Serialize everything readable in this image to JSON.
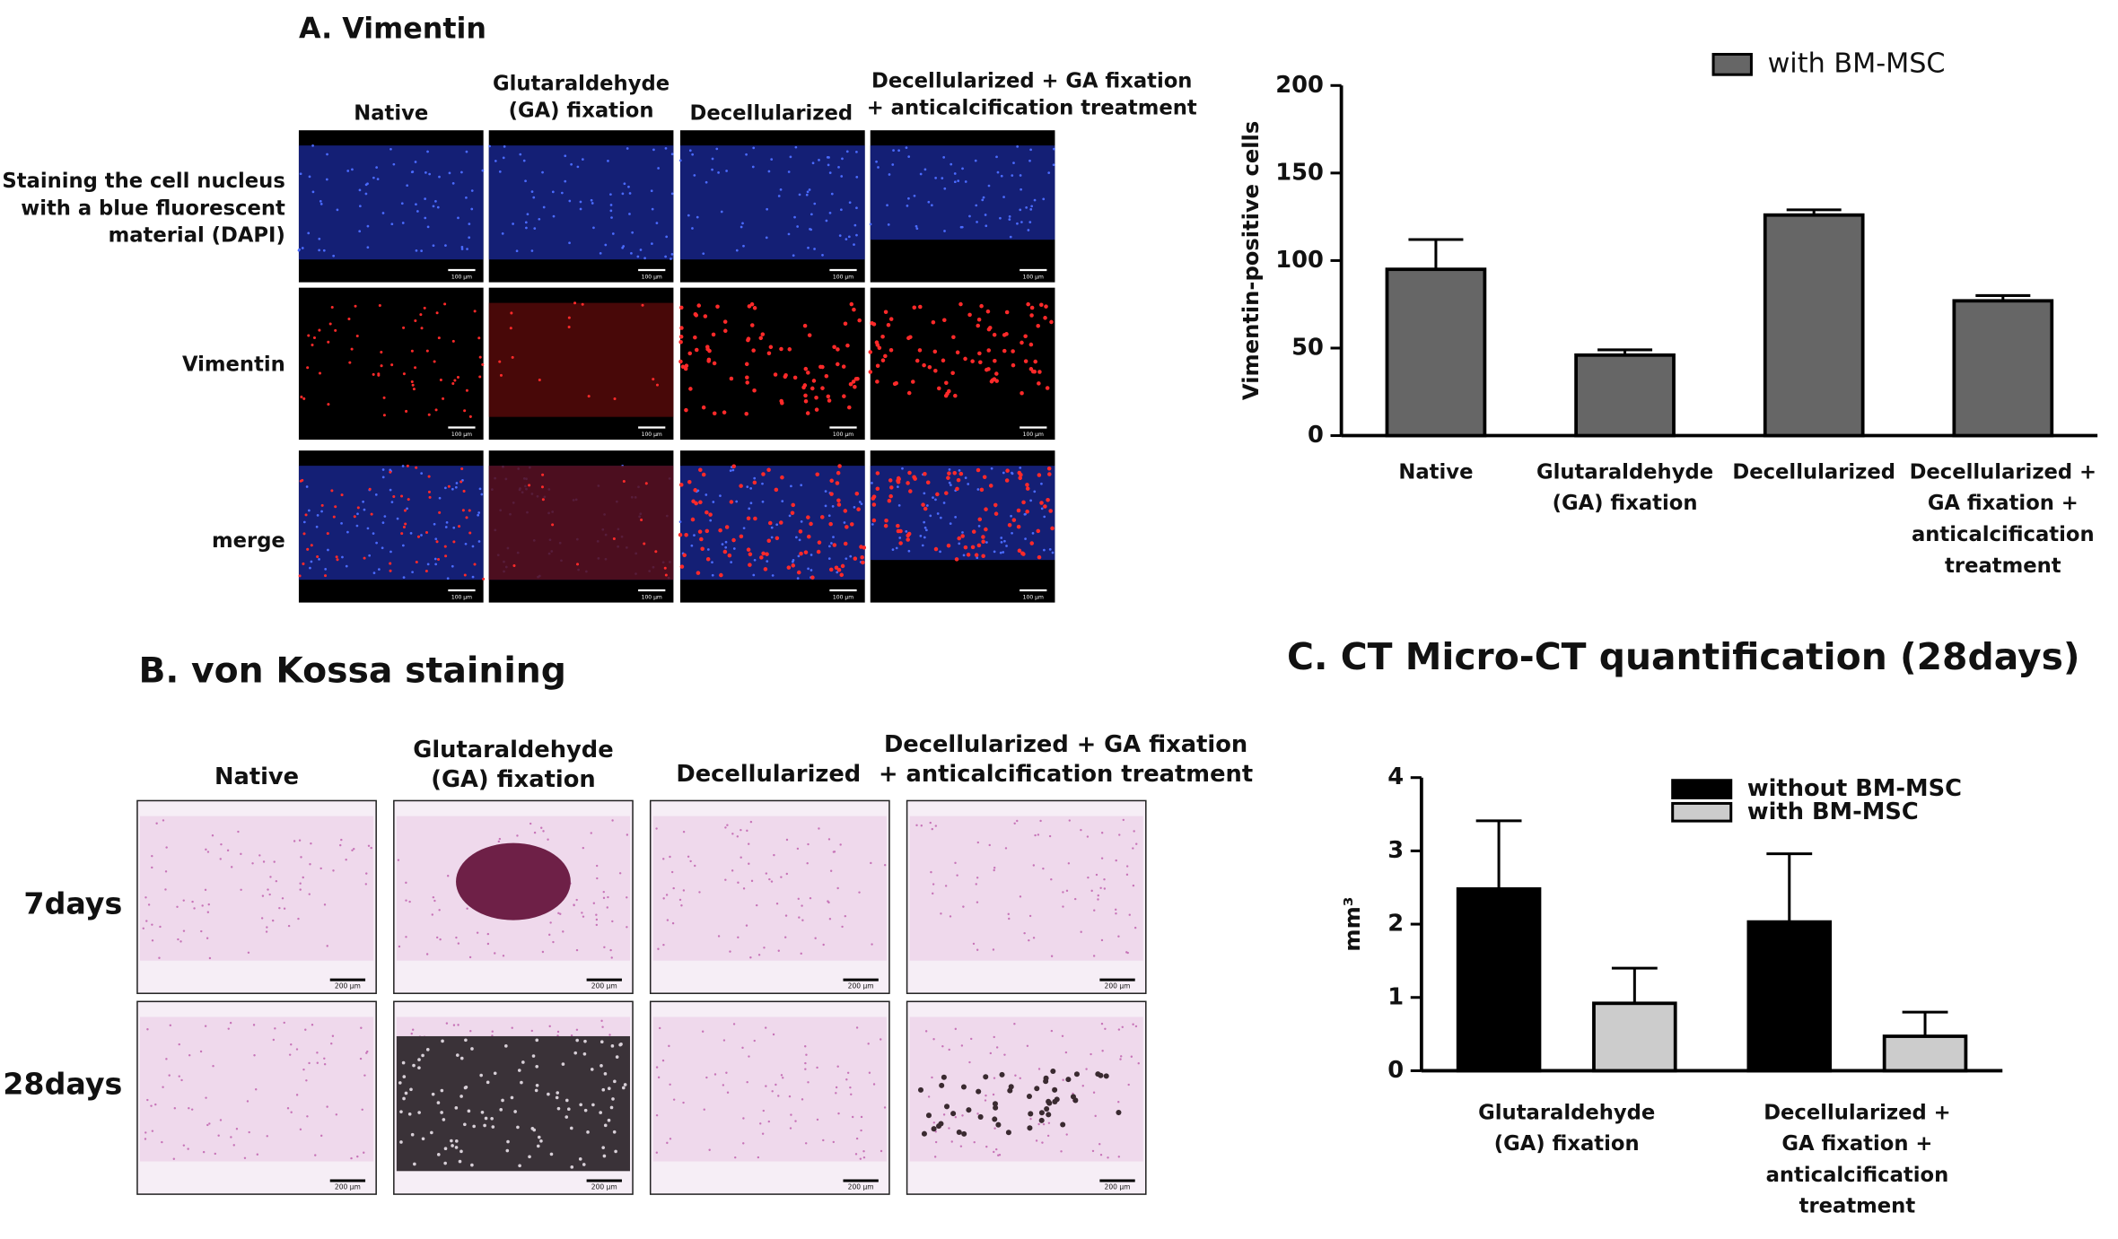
{
  "panel_a": {
    "title": "A. Vimentin",
    "columns": [
      [
        "Native"
      ],
      [
        "Glutaraldehyde",
        "(GA) fixation"
      ],
      [
        "Decellularized"
      ],
      [
        "Decellularized + GA fixation",
        "+ anticalcification treatment"
      ]
    ],
    "rows": [
      [
        "Staining the cell nucleus",
        "with a blue fluorescent",
        "material (DAPI)"
      ],
      [
        "Vimentin"
      ],
      [
        "merge"
      ]
    ],
    "scale_label": "100 µm"
  },
  "panel_b": {
    "title": "B. von Kossa staining",
    "columns": [
      [
        "Native"
      ],
      [
        "Glutaraldehyde",
        "(GA) fixation"
      ],
      [
        "Decellularized"
      ],
      [
        "Decellularized + GA fixation",
        "+ anticalcification treatment"
      ]
    ],
    "rows": [
      "7days",
      "28days"
    ],
    "scale_label": "200 µm"
  },
  "chart_data": [
    {
      "type": "bar",
      "ylabel": "Vimentin-positive cells",
      "categories": [
        "Native",
        "Glutaraldehyde (GA) fixation",
        "Decellularized",
        "Decellularized + GA fixation + anticalcification treatment"
      ],
      "series": [
        {
          "name": "with BM-MSC",
          "color": "#666666",
          "values": [
            95,
            46,
            126,
            77
          ],
          "errors": [
            17,
            3,
            3,
            3
          ]
        }
      ],
      "ylim": [
        0,
        200
      ],
      "yticks": [
        0,
        50,
        100,
        150,
        200
      ]
    },
    {
      "type": "bar",
      "title": "C. CT Micro-CT quantification (28days)",
      "ylabel": "mm³",
      "categories": [
        "Glutaraldehyde (GA) fixation",
        "Decellularized + GA fixation + anticalcification treatment"
      ],
      "series": [
        {
          "name": "without BM-MSC",
          "color": "#000000",
          "values": [
            2.48,
            2.03
          ],
          "errors": [
            0.93,
            0.93
          ]
        },
        {
          "name": "with BM-MSC",
          "color": "#cccccc",
          "values": [
            0.92,
            0.47
          ],
          "errors": [
            0.48,
            0.33
          ]
        }
      ],
      "ylim": [
        0,
        4
      ],
      "yticks": [
        0,
        1,
        2,
        3,
        4
      ]
    }
  ]
}
